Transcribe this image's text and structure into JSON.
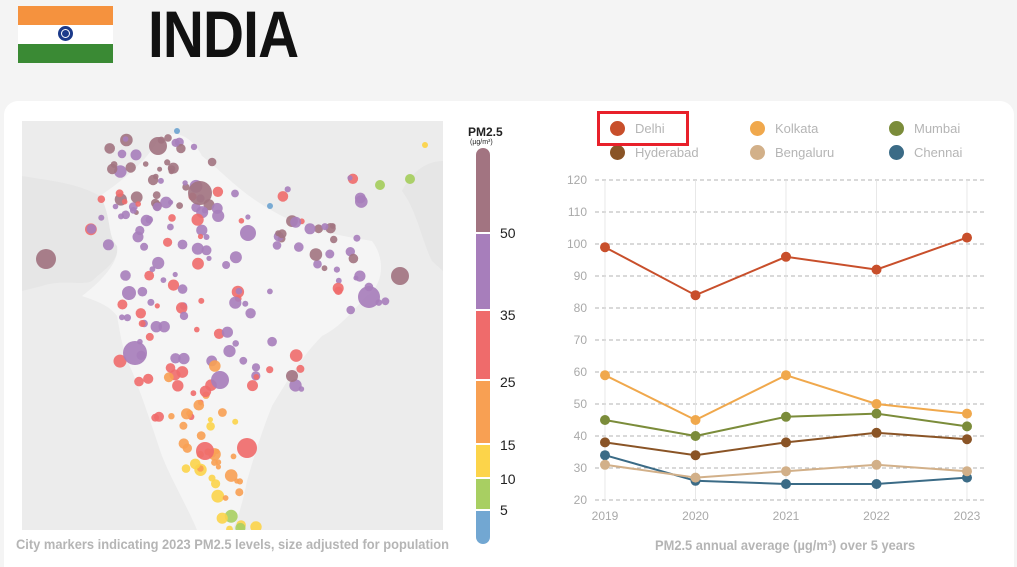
{
  "header": {
    "country": "INDIA",
    "flag_colors": [
      "#f5923e",
      "#ffffff",
      "#3a8a34"
    ],
    "chakra_color": "#1b3a8a"
  },
  "map": {
    "caption": "City markers indicating 2023 PM2.5 levels, size adjusted for population",
    "scale_title": "PM2.5",
    "scale_unit": "(µg/m³)",
    "scale_ticks": [
      "50",
      "35",
      "25",
      "15",
      "10",
      "5"
    ],
    "scale_colors": [
      "#a27481",
      "#a77ebb",
      "#ef6b6b",
      "#f8a053",
      "#fcd44a",
      "#a8cf62",
      "#72a7d2"
    ]
  },
  "chart_data": {
    "type": "line",
    "caption": "PM2.5 annual average (µg/m³) over 5 years",
    "x": [
      "2019",
      "2020",
      "2021",
      "2022",
      "2023"
    ],
    "ylim": [
      20,
      120
    ],
    "yticks": [
      "20",
      "30",
      "40",
      "50",
      "60",
      "70",
      "80",
      "90",
      "100",
      "110",
      "120"
    ],
    "grid": "dashed horizontal",
    "legend_position": "top",
    "highlighted_series": "Delhi",
    "series": [
      {
        "name": "Delhi",
        "color": "#c84f2b",
        "values": [
          99,
          84,
          96,
          92,
          102
        ]
      },
      {
        "name": "Kolkata",
        "color": "#f0a84c",
        "values": [
          59,
          45,
          59,
          50,
          47
        ]
      },
      {
        "name": "Mumbai",
        "color": "#7b8c3a",
        "values": [
          45,
          40,
          46,
          47,
          43
        ]
      },
      {
        "name": "Hyderabad",
        "color": "#8a5426",
        "values": [
          38,
          34,
          38,
          41,
          39
        ]
      },
      {
        "name": "Bengaluru",
        "color": "#d2b089",
        "values": [
          31,
          27,
          29,
          31,
          29
        ]
      },
      {
        "name": "Chennai",
        "color": "#3b6b86",
        "values": [
          34,
          26,
          25,
          25,
          27
        ]
      }
    ]
  }
}
